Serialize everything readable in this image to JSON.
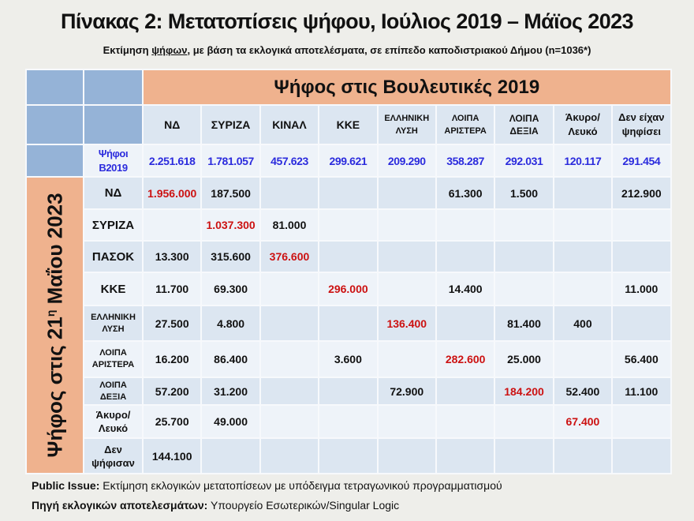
{
  "title": "Πίνακας 2: Μετατοπίσεις ψήφου, Ιούλιος 2019 – Μάϊος 2023",
  "subtitle": {
    "pre": "Εκτίμηση ",
    "underlined": "ψήφων",
    "post": ", με βάση τα εκλογικά αποτελέσματα, σε επίπεδο καποδιστριακού Δήμου (n=1036*)"
  },
  "table": {
    "column_group_title": "Ψήφος στις Βουλευτικές 2019",
    "row_group_title_pre": "Ψήφος στις 21",
    "row_group_title_sup": "η",
    "row_group_title_post": " Μαΐου 2023",
    "columns": [
      {
        "l1": "ΝΔ",
        "l2": ""
      },
      {
        "l1": "ΣΥΡΙΖΑ",
        "l2": ""
      },
      {
        "l1": "ΚΙΝΑΛ",
        "l2": ""
      },
      {
        "l1": "ΚΚΕ",
        "l2": ""
      },
      {
        "l1": "ΕΛΛΗΝΙΚΗ",
        "l2": "ΛΥΣΗ"
      },
      {
        "l1": "ΛΟΙΠΑ",
        "l2": "ΑΡΙΣΤΕΡΑ"
      },
      {
        "l1": "ΛΟΙΠΑ",
        "l2": "ΔΕΞΙΑ"
      },
      {
        "l1": "Άκυρο/",
        "l2": "Λευκό"
      },
      {
        "l1": "Δεν είχαν",
        "l2": "ψηφίσει"
      }
    ],
    "votes_label_l1": "Ψήφοι",
    "votes_label_l2": "Β2019",
    "votes": [
      "2.251.618",
      "1.781.057",
      "457.623",
      "299.621",
      "209.290",
      "358.287",
      "292.031",
      "120.117",
      "291.454"
    ],
    "rows": [
      {
        "l1": "ΝΔ",
        "l2": "",
        "cells": [
          "1.956.000",
          "187.500",
          "",
          "",
          "",
          "61.300",
          "1.500",
          "",
          "212.900"
        ],
        "diag": 0
      },
      {
        "l1": "ΣΥΡΙΖΑ",
        "l2": "",
        "cells": [
          "",
          "1.037.300",
          "81.000",
          "",
          "",
          "",
          "",
          "",
          ""
        ],
        "diag": 1
      },
      {
        "l1": "ΠΑΣΟΚ",
        "l2": "",
        "cells": [
          "13.300",
          "315.600",
          "376.600",
          "",
          "",
          "",
          "",
          "",
          ""
        ],
        "diag": 2
      },
      {
        "l1": "ΚΚΕ",
        "l2": "",
        "cells": [
          "11.700",
          "69.300",
          "",
          "296.000",
          "",
          "14.400",
          "",
          "",
          "11.000"
        ],
        "diag": 3
      },
      {
        "l1": "ΕΛΛΗΝΙΚΗ",
        "l2": "ΛΥΣΗ",
        "cells": [
          "27.500",
          "4.800",
          "",
          "",
          "136.400",
          "",
          "81.400",
          "400",
          ""
        ],
        "diag": 4
      },
      {
        "l1": "ΛΟΙΠΑ",
        "l2": "ΑΡΙΣΤΕΡΑ",
        "cells": [
          "16.200",
          "86.400",
          "",
          "3.600",
          "",
          "282.600",
          "25.000",
          "",
          "56.400"
        ],
        "diag": 5
      },
      {
        "l1": "ΛΟΙΠΑ",
        "l2": "ΔΕΞΙΑ",
        "cells": [
          "57.200",
          "31.200",
          "",
          "",
          "72.900",
          "",
          "184.200",
          "52.400",
          "11.100"
        ],
        "diag": 6
      },
      {
        "l1": "Άκυρο/",
        "l2": "Λευκό",
        "cells": [
          "25.700",
          "49.000",
          "",
          "",
          "",
          "",
          "",
          "67.400",
          ""
        ],
        "diag": 7
      },
      {
        "l1": "Δεν",
        "l2": "ψήφισαν",
        "cells": [
          "144.100",
          "",
          "",
          "",
          "",
          "",
          "",
          "",
          ""
        ],
        "diag": -1
      }
    ]
  },
  "footer": {
    "line1_bold": "Public Issue:",
    "line1_text": " Εκτίμηση εκλογικών μετατοπίσεων με υπόδειγμα τετραγωνικού προγραμματισμού",
    "line2_bold": "Πηγή εκλογικών αποτελεσμάτων:",
    "line2_text": " Υπουργείο Εσωτερικών/Singular Logic"
  },
  "colors": {
    "diagonal": "#cc1111",
    "votes": "#2b2bdd",
    "header_orange": "#efb28e",
    "header_blue": "#95b3d7"
  }
}
